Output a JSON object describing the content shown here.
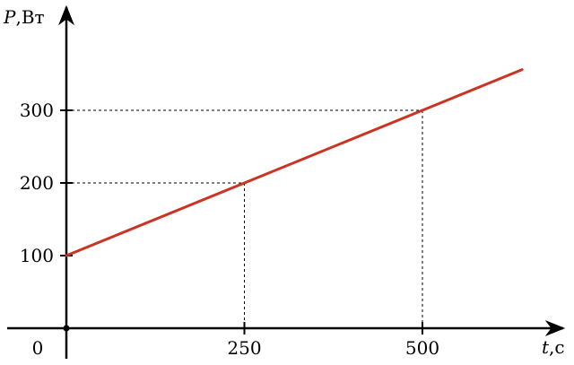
{
  "chart_data": {
    "type": "line",
    "xlabel_var": "t",
    "xlabel_unit": ",с",
    "ylabel_var": "P",
    "ylabel_unit": ",Вт",
    "origin_label": "0",
    "xlim": [
      0,
      650
    ],
    "ylim": [
      0,
      360
    ],
    "x_ticks": [
      {
        "value": 250,
        "label": "250"
      },
      {
        "value": 500,
        "label": "500"
      }
    ],
    "y_ticks": [
      {
        "value": 100,
        "label": "100"
      },
      {
        "value": 200,
        "label": "200"
      },
      {
        "value": 300,
        "label": "300"
      }
    ],
    "series": [
      {
        "x": [
          0,
          250,
          500,
          640
        ],
        "y": [
          100,
          200,
          300,
          356
        ],
        "color": "#cc3322"
      }
    ],
    "guides": [
      {
        "x": 250,
        "y": 200
      },
      {
        "x": 500,
        "y": 300
      }
    ]
  }
}
